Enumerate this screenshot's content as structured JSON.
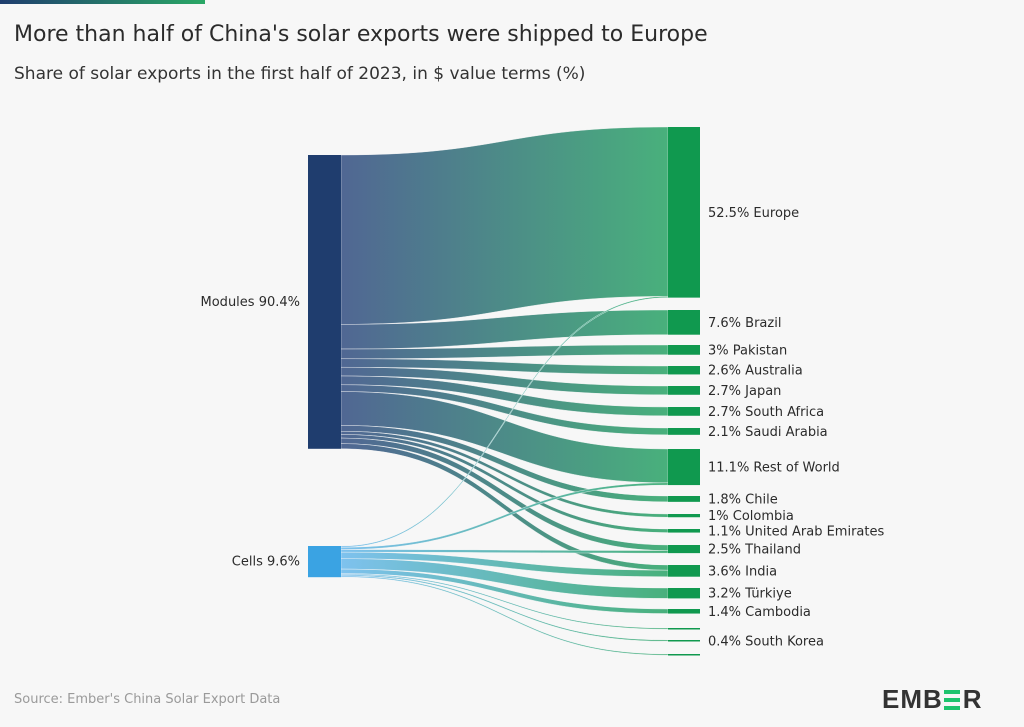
{
  "header": {
    "title": "More than half of China's solar exports were shipped to Europe",
    "subtitle": "Share of solar exports in the first half of 2023, in $ value terms (%)"
  },
  "footer": {
    "source": "Source: Ember's China Solar Export Data",
    "logo": "EMBER"
  },
  "colors": {
    "modules": "#1f3d6e",
    "cells": "#3aa3e3",
    "destination": "#10994f",
    "link_end": "#43ae78",
    "accent_bar_start": "#1f3d6e",
    "accent_bar_end": "#2aa866"
  },
  "chart_data": {
    "type": "sankey",
    "unit": "%",
    "sources": [
      {
        "id": "modules",
        "label": "Modules 90.4%",
        "value": 90.4
      },
      {
        "id": "cells",
        "label": "Cells 9.6%",
        "value": 9.6
      }
    ],
    "targets": [
      {
        "id": "europe",
        "label": "52.5% Europe",
        "value": 52.5
      },
      {
        "id": "brazil",
        "label": "7.6% Brazil",
        "value": 7.6
      },
      {
        "id": "pakistan",
        "label": "3% Pakistan",
        "value": 3
      },
      {
        "id": "australia",
        "label": "2.6% Australia",
        "value": 2.6
      },
      {
        "id": "japan",
        "label": "2.7% Japan",
        "value": 2.7
      },
      {
        "id": "south_africa",
        "label": "2.7% South Africa",
        "value": 2.7
      },
      {
        "id": "saudi_arabia",
        "label": "2.1% Saudi Arabia",
        "value": 2.1
      },
      {
        "id": "rest_of_world",
        "label": "11.1% Rest of World",
        "value": 11.1
      },
      {
        "id": "chile",
        "label": "1.8% Chile",
        "value": 1.8
      },
      {
        "id": "colombia",
        "label": "1% Colombia",
        "value": 1
      },
      {
        "id": "uae",
        "label": "1.1% United Arab Emirates",
        "value": 1.1
      },
      {
        "id": "thailand",
        "label": "2.5% Thailand",
        "value": 2.5
      },
      {
        "id": "india",
        "label": "3.6% India",
        "value": 3.6
      },
      {
        "id": "turkiye",
        "label": "3.2% Türkiye",
        "value": 3.2
      },
      {
        "id": "cambodia",
        "label": "1.4% Cambodia",
        "value": 1.4
      },
      {
        "id": "unlabeled_1",
        "label": "",
        "value": 0.3
      },
      {
        "id": "south_korea",
        "label": "0.4% South Korea",
        "value": 0.4
      },
      {
        "id": "unlabeled_2",
        "label": "",
        "value": 0.3
      }
    ],
    "links": [
      {
        "source": "modules",
        "target": "europe",
        "value": 52.1
      },
      {
        "source": "modules",
        "target": "brazil",
        "value": 7.6
      },
      {
        "source": "modules",
        "target": "pakistan",
        "value": 3
      },
      {
        "source": "modules",
        "target": "australia",
        "value": 2.6
      },
      {
        "source": "modules",
        "target": "japan",
        "value": 2.7
      },
      {
        "source": "modules",
        "target": "south_africa",
        "value": 2.7
      },
      {
        "source": "modules",
        "target": "saudi_arabia",
        "value": 2.1
      },
      {
        "source": "modules",
        "target": "rest_of_world",
        "value": 10.4
      },
      {
        "source": "modules",
        "target": "chile",
        "value": 1.8
      },
      {
        "source": "modules",
        "target": "colombia",
        "value": 1
      },
      {
        "source": "modules",
        "target": "uae",
        "value": 1.1
      },
      {
        "source": "modules",
        "target": "thailand",
        "value": 1.7
      },
      {
        "source": "modules",
        "target": "india",
        "value": 1.6
      },
      {
        "source": "cells",
        "target": "europe",
        "value": 0.4
      },
      {
        "source": "cells",
        "target": "rest_of_world",
        "value": 0.7
      },
      {
        "source": "cells",
        "target": "thailand",
        "value": 0.8
      },
      {
        "source": "cells",
        "target": "india",
        "value": 2.0
      },
      {
        "source": "cells",
        "target": "turkiye",
        "value": 3.2
      },
      {
        "source": "cells",
        "target": "cambodia",
        "value": 1.4
      },
      {
        "source": "cells",
        "target": "unlabeled_1",
        "value": 0.3
      },
      {
        "source": "cells",
        "target": "south_korea",
        "value": 0.4
      },
      {
        "source": "cells",
        "target": "unlabeled_2",
        "value": 0.3
      }
    ]
  }
}
